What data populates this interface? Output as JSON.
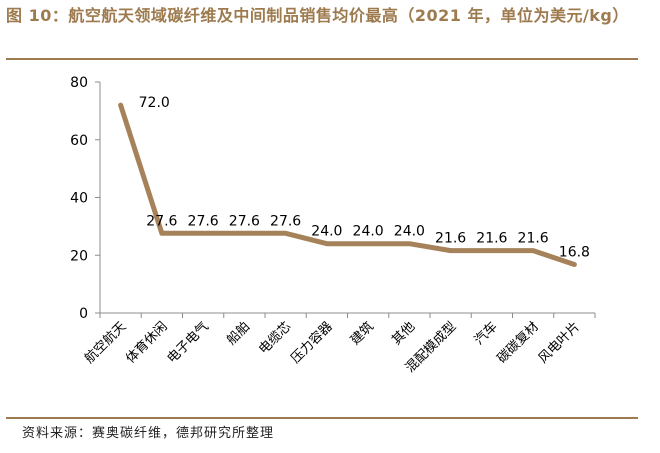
{
  "title": "图 10：航空航天领域碳纤维及中间制品销售均价最高（2021 年，单位为美元/kg）",
  "source": "资料来源：赛奥碳纤维，德邦研究所整理",
  "colors": {
    "accent": "#9e7b4f",
    "line": "#a6825a"
  },
  "chart_data": {
    "type": "line",
    "title": "",
    "xlabel": "",
    "ylabel": "",
    "ylim": [
      0,
      80
    ],
    "yticks": [
      0,
      20,
      40,
      60,
      80
    ],
    "grid": false,
    "categories": [
      "航空航天",
      "体育休闲",
      "电子电气",
      "船舶",
      "电缆芯",
      "压力容器",
      "建筑",
      "其他",
      "混配模成型",
      "汽车",
      "碳碳复材",
      "风电叶片"
    ],
    "series": [
      {
        "values": [
          72.0,
          27.6,
          27.6,
          27.6,
          27.6,
          24.0,
          24.0,
          24.0,
          21.6,
          21.6,
          21.6,
          16.8
        ],
        "labels": [
          "72.0",
          "27.6",
          "27.6",
          "27.6",
          "27.6",
          "24.0",
          "24.0",
          "24.0",
          "21.6",
          "21.6",
          "21.6",
          "16.8"
        ]
      }
    ]
  }
}
